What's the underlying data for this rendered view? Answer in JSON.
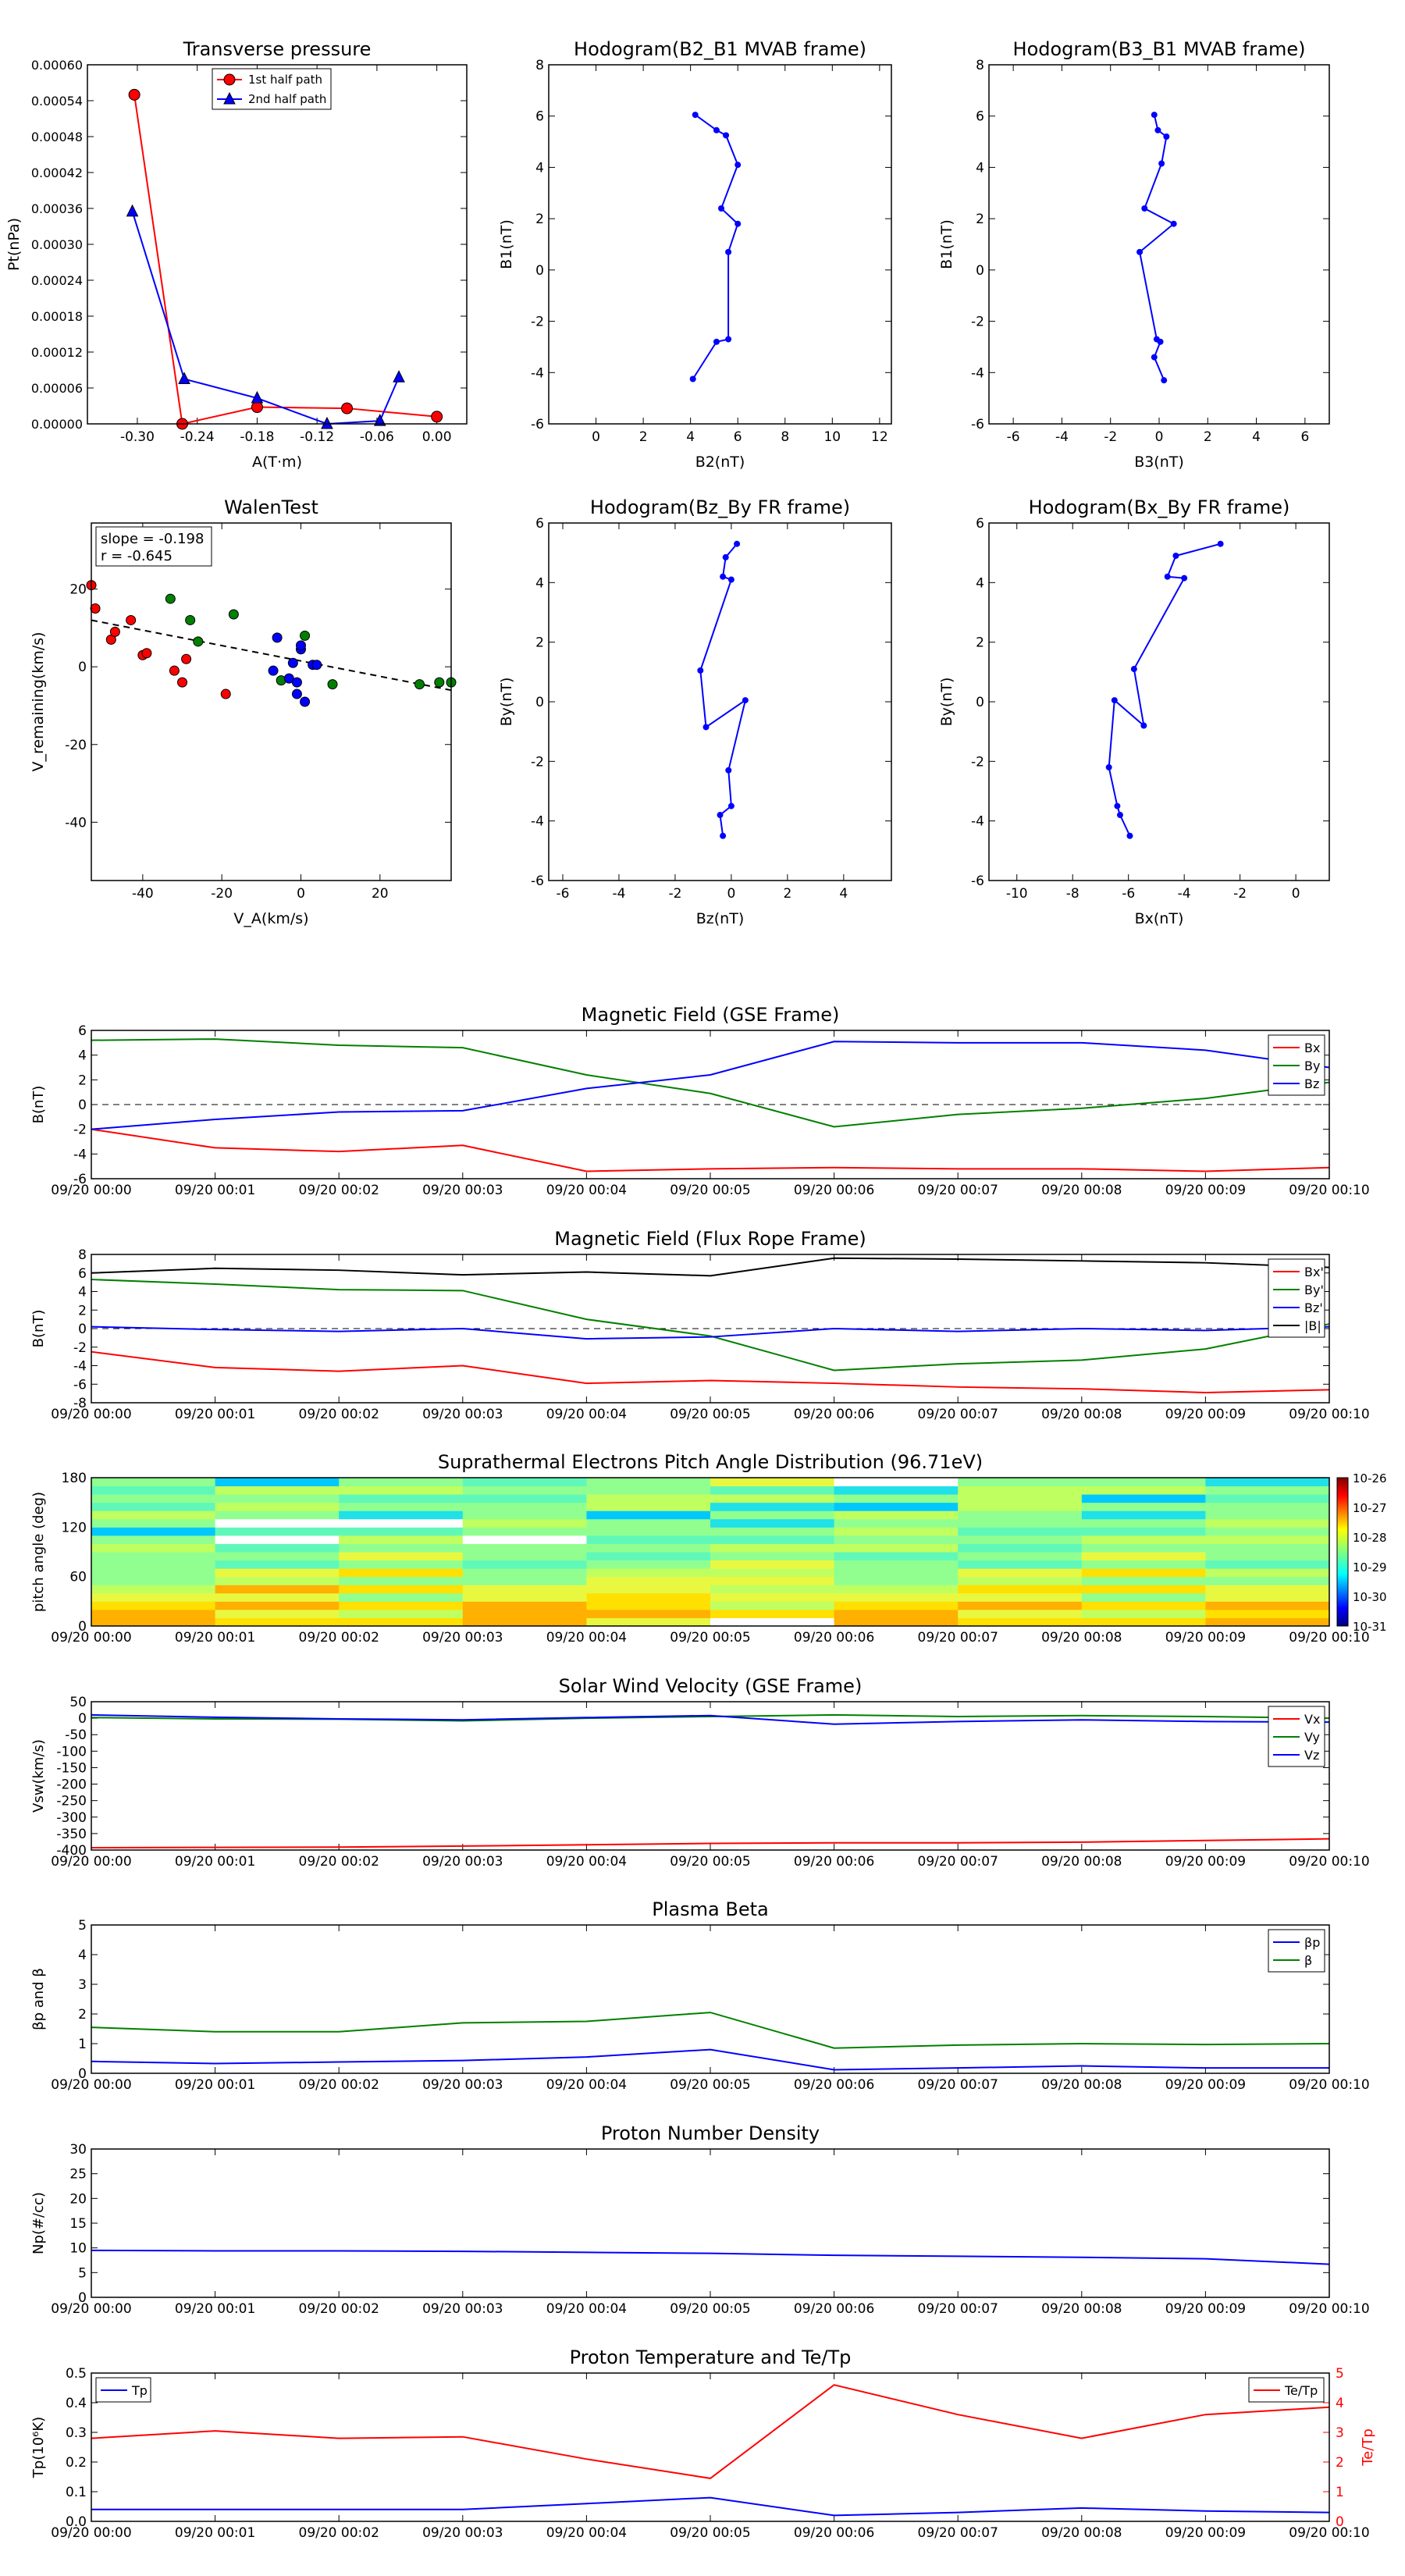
{
  "chart_data": [
    {
      "type": "scatter",
      "title": "Transverse pressure",
      "xlabel": "A(T·m)",
      "ylabel": "Pt(nPa)",
      "xlim": [
        -0.35,
        0.03
      ],
      "ylim": [
        0,
        0.0006
      ],
      "xticks": [
        "-0.30",
        "-0.24",
        "-0.18",
        "-0.12",
        "-0.06",
        "0.00"
      ],
      "yticks": [
        "0.00000",
        "0.00006",
        "0.00012",
        "0.00018",
        "0.00024",
        "0.00030",
        "0.00036",
        "0.00042",
        "0.00048",
        "0.00054",
        "0.00060"
      ],
      "legend": "top-center",
      "series": [
        {
          "name": "1st half path",
          "color": "#ff0000",
          "marker": "circle",
          "x": [
            -0.303,
            -0.255,
            -0.18,
            -0.09,
            0.0
          ],
          "y": [
            0.00055,
            0.0,
            2.8e-05,
            2.6e-05,
            1.2e-05
          ]
        },
        {
          "name": "2nd half path",
          "color": "#0000ff",
          "marker": "triangle",
          "x": [
            -0.305,
            -0.253,
            -0.18,
            -0.11,
            -0.057,
            -0.038
          ],
          "y": [
            0.000355,
            7.5e-05,
            4.3e-05,
            0.0,
            5e-06,
            7.8e-05
          ]
        }
      ]
    },
    {
      "type": "line",
      "title": "Hodogram(B2_B1 MVAB frame)",
      "xlabel": "B2(nT)",
      "ylabel": "B1(nT)",
      "xlim": [
        -2,
        12.5
      ],
      "ylim": [
        -6,
        8
      ],
      "xticks": [
        "0",
        "2",
        "4",
        "6",
        "8",
        "10",
        "12"
      ],
      "yticks": [
        "-6",
        "-4",
        "-2",
        "0",
        "2",
        "4",
        "6",
        "8"
      ],
      "series": [
        {
          "color": "#0000ff",
          "x": [
            4.2,
            5.1,
            5.5,
            6.0,
            5.3,
            6.0,
            5.6,
            5.6,
            5.1,
            4.1
          ],
          "y": [
            6.05,
            5.45,
            5.25,
            4.1,
            2.4,
            1.8,
            0.7,
            -2.7,
            -2.8,
            -4.25
          ]
        }
      ]
    },
    {
      "type": "line",
      "title": "Hodogram(B3_B1 MVAB frame)",
      "xlabel": "B3(nT)",
      "ylabel": "B1(nT)",
      "xlim": [
        -7,
        7
      ],
      "ylim": [
        -6,
        8
      ],
      "xticks": [
        "-6",
        "-4",
        "-2",
        "0",
        "2",
        "4",
        "6"
      ],
      "yticks": [
        "-6",
        "-4",
        "-2",
        "0",
        "2",
        "4",
        "6",
        "8"
      ],
      "series": [
        {
          "color": "#0000ff",
          "x": [
            -0.2,
            -0.05,
            0.3,
            0.1,
            -0.6,
            0.6,
            -0.8,
            -0.1,
            0.05,
            -0.2,
            0.2
          ],
          "y": [
            6.05,
            5.45,
            5.2,
            4.15,
            2.4,
            1.8,
            0.7,
            -2.7,
            -2.8,
            -3.4,
            -4.3
          ]
        }
      ]
    },
    {
      "type": "scatter",
      "title": "WalenTest",
      "xlabel": "V_A(km/s)",
      "ylabel": "V_remaining(km/s)",
      "xlim": [
        -53,
        38
      ],
      "ylim": [
        -55,
        37
      ],
      "xticks": [
        "-40",
        "-20",
        "0",
        "20"
      ],
      "yticks": [
        "-40",
        "-20",
        "0",
        "20"
      ],
      "annotations": [
        "slope = -0.198",
        "r = -0.645"
      ],
      "fit_line": {
        "slope": -0.198,
        "intercept": 1.5
      },
      "series": [
        {
          "color": "#ff0000",
          "x": [
            -53,
            -52,
            -48,
            -47,
            -43,
            -40,
            -39,
            -32,
            -30,
            -29,
            -19
          ],
          "y": [
            21,
            15,
            7,
            9,
            12,
            3,
            3.5,
            -1,
            -4,
            2,
            -7
          ]
        },
        {
          "color": "#008000",
          "x": [
            -33,
            -28,
            -26,
            -17,
            -5,
            1,
            8,
            30,
            35,
            38
          ],
          "y": [
            17.5,
            12,
            6.5,
            13.5,
            -3.5,
            8,
            -4.5,
            -4.5,
            -4,
            -4
          ]
        },
        {
          "color": "#0000ff",
          "x": [
            -6,
            -7,
            -3,
            -2,
            -1,
            0,
            -1,
            0,
            1,
            3,
            4
          ],
          "y": [
            7.5,
            -1,
            -3,
            1,
            -4,
            4.5,
            -7,
            5.5,
            -9,
            0.5,
            0.5
          ]
        }
      ]
    },
    {
      "type": "line",
      "title": "Hodogram(Bz_By FR frame)",
      "xlabel": "Bz(nT)",
      "ylabel": "By(nT)",
      "xlim": [
        -6.5,
        5.7
      ],
      "ylim": [
        -6,
        6
      ],
      "xticks": [
        "-6",
        "-4",
        "-2",
        "0",
        "4",
        "2"
      ],
      "yticks": [
        "-6",
        "-4",
        "-2",
        "0",
        "2",
        "4",
        "6"
      ],
      "series": [
        {
          "color": "#0000ff",
          "x": [
            0.2,
            -0.2,
            -0.3,
            0.0,
            -1.1,
            -0.9,
            0.5,
            -0.1,
            0.0,
            -0.4,
            -0.3
          ],
          "y": [
            5.3,
            4.85,
            4.2,
            4.1,
            1.05,
            -0.85,
            0.05,
            -2.3,
            -3.5,
            -3.8,
            -4.5
          ]
        }
      ]
    },
    {
      "type": "line",
      "title": "Hodogram(Bx_By FR frame)",
      "xlabel": "Bx(nT)",
      "ylabel": "By(nT)",
      "xlim": [
        -11,
        1.2
      ],
      "ylim": [
        -6,
        6
      ],
      "xticks": [
        "-10",
        "-8",
        "-6",
        "-4",
        "-2",
        "0"
      ],
      "yticks": [
        "-6",
        "-4",
        "-2",
        "0",
        "2",
        "4",
        "6"
      ],
      "series": [
        {
          "color": "#0000ff",
          "x": [
            -2.7,
            -4.3,
            -4.6,
            -4.0,
            -5.8,
            -5.45,
            -6.5,
            -6.7,
            -6.4,
            -6.3,
            -5.95
          ],
          "y": [
            5.3,
            4.9,
            4.2,
            4.15,
            1.1,
            -0.8,
            0.05,
            -2.2,
            -3.5,
            -3.8,
            -4.5
          ]
        }
      ]
    },
    {
      "type": "line",
      "title": "Magnetic Field (GSE Frame)",
      "ylabel": "B(nT)",
      "ylim": [
        -6,
        6
      ],
      "yticks": [
        "-6",
        "-4",
        "-2",
        "0",
        "2",
        "4",
        "6"
      ],
      "legend": "top-right",
      "zero_line": true,
      "series": [
        {
          "name": "Bx",
          "color": "#ff0000",
          "values": [
            -2.0,
            -3.5,
            -3.8,
            -3.3,
            -5.4,
            -5.2,
            -5.1,
            -5.2,
            -5.2,
            -5.4,
            -5.1
          ]
        },
        {
          "name": "By",
          "color": "#008000",
          "values": [
            5.2,
            5.3,
            4.8,
            4.6,
            2.4,
            0.9,
            -1.8,
            -0.8,
            -0.3,
            0.5,
            1.8
          ]
        },
        {
          "name": "Bz",
          "color": "#0000ff",
          "values": [
            -2.0,
            -1.2,
            -0.6,
            -0.5,
            1.3,
            2.4,
            5.1,
            5.0,
            5.0,
            4.4,
            3.0
          ]
        }
      ]
    },
    {
      "type": "line",
      "title": "Magnetic Field (Flux Rope Frame)",
      "ylabel": "B(nT)",
      "ylim": [
        -8,
        8
      ],
      "yticks": [
        "-8",
        "-6",
        "-4",
        "-2",
        "0",
        "2",
        "4",
        "6",
        "8"
      ],
      "legend": "top-right",
      "zero_line": true,
      "series": [
        {
          "name": "Bx'",
          "color": "#ff0000",
          "values": [
            -2.5,
            -4.2,
            -4.6,
            -4.0,
            -5.9,
            -5.6,
            -5.9,
            -6.3,
            -6.5,
            -6.9,
            -6.6
          ]
        },
        {
          "name": "By'",
          "color": "#008000",
          "values": [
            5.3,
            4.8,
            4.2,
            4.1,
            1.0,
            -0.8,
            -4.5,
            -3.8,
            -3.4,
            -2.2,
            0.5
          ]
        },
        {
          "name": "Bz'",
          "color": "#0000ff",
          "values": [
            0.2,
            -0.1,
            -0.3,
            0.0,
            -1.1,
            -0.9,
            0.0,
            -0.3,
            0.0,
            -0.2,
            0.2
          ]
        },
        {
          "name": "|B|",
          "color": "#000000",
          "values": [
            6.0,
            6.5,
            6.3,
            5.8,
            6.1,
            5.7,
            7.6,
            7.5,
            7.3,
            7.1,
            6.6
          ]
        }
      ]
    },
    {
      "type": "heatmap",
      "title": "Suprathermal Electrons Pitch Angle Distribution (96.71eV)",
      "ylabel": "pitch angle (deg)",
      "ylim": [
        0,
        180
      ],
      "yticks": [
        "0",
        "60",
        "120",
        "180"
      ],
      "colorbar": {
        "ticks": [
          "10-26",
          "10-27",
          "10-28",
          "10-29",
          "10-30",
          "10-31"
        ],
        "scale": "log"
      }
    },
    {
      "type": "line",
      "title": "Solar Wind Velocity (GSE Frame)",
      "ylabel": "Vsw(km/s)",
      "ylim": [
        -400,
        50
      ],
      "yticks": [
        "-400",
        "-350",
        "-300",
        "-250",
        "-200",
        "-150",
        "-100",
        "-50",
        "0",
        "50"
      ],
      "legend": "top-right",
      "series": [
        {
          "name": "Vx",
          "color": "#ff0000",
          "values": [
            -393,
            -392,
            -391,
            -388,
            -384,
            -380,
            -378,
            -378,
            -376,
            -371,
            -366
          ]
        },
        {
          "name": "Vy",
          "color": "#008000",
          "values": [
            2,
            -2,
            -3,
            -8,
            0,
            5,
            10,
            5,
            8,
            5,
            0
          ]
        },
        {
          "name": "Vz",
          "color": "#0000ff",
          "values": [
            10,
            3,
            -2,
            -5,
            2,
            8,
            -18,
            -10,
            -5,
            -10,
            -12
          ]
        }
      ]
    },
    {
      "type": "line",
      "title": "Plasma Beta",
      "ylabel": "βp and β",
      "ylim": [
        0,
        5
      ],
      "yticks": [
        "0",
        "1",
        "2",
        "3",
        "4",
        "5"
      ],
      "legend": "top-right",
      "series": [
        {
          "name": "βp",
          "color": "#0000ff",
          "values": [
            0.4,
            0.33,
            0.38,
            0.43,
            0.55,
            0.8,
            0.12,
            0.18,
            0.25,
            0.18,
            0.18
          ]
        },
        {
          "name": "β",
          "color": "#008000",
          "values": [
            1.55,
            1.4,
            1.4,
            1.7,
            1.75,
            2.05,
            0.85,
            0.95,
            1.0,
            0.97,
            1.0
          ]
        }
      ]
    },
    {
      "type": "line",
      "title": "Proton Number Density",
      "ylabel": "Np(#/cc)",
      "ylim": [
        0,
        30
      ],
      "yticks": [
        "0",
        "5",
        "10",
        "15",
        "20",
        "25",
        "30"
      ],
      "series": [
        {
          "color": "#0000ff",
          "values": [
            9.5,
            9.4,
            9.4,
            9.3,
            9.1,
            8.9,
            8.5,
            8.3,
            8.1,
            7.8,
            6.7
          ]
        }
      ]
    },
    {
      "type": "line",
      "title": "Proton Temperature and Te/Tp",
      "ylabel": "Tp(10⁶K)",
      "ylabel_right": "Te/Tp",
      "ylim": [
        0,
        0.5
      ],
      "ylim_right": [
        0,
        5
      ],
      "yticks": [
        "0.0",
        "0.1",
        "0.2",
        "0.3",
        "0.4",
        "0.5"
      ],
      "yticks_right": [
        "0",
        "1",
        "2",
        "3",
        "4",
        "5"
      ],
      "series": [
        {
          "name": "Tp",
          "color": "#0000ff",
          "axis": "left",
          "values": [
            0.04,
            0.04,
            0.04,
            0.04,
            0.06,
            0.08,
            0.02,
            0.03,
            0.045,
            0.035,
            0.03
          ]
        },
        {
          "name": "Te/Tp",
          "color": "#ff0000",
          "axis": "right",
          "values": [
            2.8,
            3.05,
            2.8,
            2.85,
            2.1,
            1.45,
            4.6,
            3.6,
            2.8,
            3.6,
            3.85
          ]
        }
      ]
    }
  ],
  "time_ticks": [
    "09/20 00:00",
    "09/20 00:01",
    "09/20 00:02",
    "09/20 00:03",
    "09/20 00:04",
    "09/20 00:05",
    "09/20 00:06",
    "09/20 00:07",
    "09/20 00:08",
    "09/20 00:09",
    "09/20 00:10"
  ]
}
